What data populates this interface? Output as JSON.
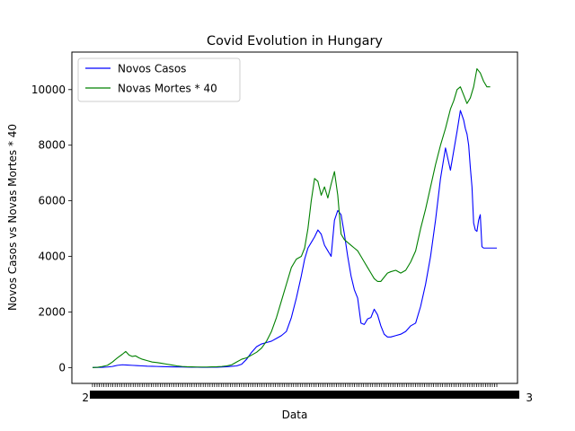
{
  "chart_data": {
    "type": "line",
    "title": "Covid Evolution in Hungary",
    "xlabel": "Data",
    "ylabel": "Novos Casos vs Novas Mortes * 40",
    "ylim": [
      -570,
      11350
    ],
    "yticks": [
      0,
      2000,
      4000,
      6000,
      8000,
      10000
    ],
    "yticklabels": [
      "0",
      "2000",
      "4000",
      "6000",
      "8000",
      "10000"
    ],
    "x_tick_labels_note": "dense overlapping date labels",
    "x_tick_overlap_label_left": "2",
    "x_tick_overlap_label_right": "3",
    "grid": false,
    "legend": {
      "placement": "top-left"
    },
    "series": [
      {
        "name": "Novos Casos",
        "color": "#0000ff",
        "x": [
          0,
          6,
          12,
          18,
          24,
          30,
          36,
          42,
          48,
          54,
          60,
          66,
          72,
          78,
          84,
          90,
          96,
          102,
          108,
          114,
          120,
          126,
          132,
          138,
          144,
          150,
          156,
          162,
          168,
          174,
          180,
          186,
          192,
          198,
          204,
          210,
          216,
          222,
          228,
          234,
          240,
          246,
          252,
          256,
          260,
          264,
          268,
          272,
          276,
          280,
          284,
          288,
          292,
          296,
          300,
          304,
          308,
          312,
          316,
          320,
          324,
          328,
          332,
          336,
          340,
          344,
          348,
          352,
          356,
          360,
          366,
          372,
          378,
          384,
          390,
          396,
          402,
          408,
          414,
          420,
          426,
          432,
          436,
          440,
          444,
          448,
          450,
          452,
          454,
          456,
          458,
          460,
          462,
          464,
          466,
          468,
          470,
          472,
          474,
          476,
          478,
          480,
          482,
          484,
          486,
          488
        ],
        "values": [
          0,
          5,
          10,
          20,
          40,
          80,
          100,
          90,
          80,
          70,
          60,
          50,
          45,
          40,
          35,
          30,
          25,
          22,
          20,
          18,
          15,
          12,
          10,
          10,
          12,
          15,
          20,
          30,
          45,
          60,
          120,
          300,
          550,
          750,
          850,
          900,
          950,
          1050,
          1150,
          1300,
          1800,
          2500,
          3300,
          3900,
          4300,
          4500,
          4700,
          4950,
          4800,
          4400,
          4200,
          4000,
          5300,
          5650,
          5500,
          4800,
          4000,
          3300,
          2800,
          2500,
          1600,
          1550,
          1750,
          1800,
          2100,
          1900,
          1500,
          1200,
          1100,
          1100,
          1150,
          1200,
          1300,
          1500,
          1600,
          2200,
          3000,
          4000,
          5300,
          6800,
          7900,
          7100,
          7800,
          8500,
          9250,
          8900,
          8600,
          8400,
          8000,
          7200,
          6500,
          5200,
          4950,
          4900,
          5300,
          5500,
          4350,
          4300,
          4300,
          4300,
          4300,
          4300,
          4300,
          4300,
          4300,
          4300
        ]
      },
      {
        "name": "Novas Mortes * 40",
        "color": "#008000",
        "x": [
          0,
          6,
          12,
          18,
          24,
          30,
          36,
          40,
          44,
          48,
          52,
          56,
          60,
          66,
          72,
          78,
          84,
          90,
          96,
          102,
          108,
          114,
          120,
          126,
          132,
          138,
          144,
          150,
          156,
          162,
          168,
          174,
          180,
          186,
          192,
          198,
          204,
          210,
          216,
          222,
          228,
          234,
          240,
          246,
          252,
          256,
          260,
          264,
          268,
          272,
          276,
          280,
          284,
          288,
          292,
          296,
          300,
          304,
          308,
          312,
          316,
          320,
          324,
          328,
          332,
          336,
          340,
          344,
          348,
          352,
          356,
          360,
          366,
          372,
          378,
          384,
          390,
          396,
          402,
          408,
          414,
          420,
          426,
          432,
          436,
          440,
          444,
          448,
          452,
          456,
          460,
          464,
          468,
          472,
          476,
          480
        ],
        "values": [
          0,
          10,
          40,
          80,
          200,
          350,
          480,
          580,
          450,
          400,
          420,
          350,
          300,
          250,
          200,
          180,
          150,
          120,
          90,
          60,
          40,
          30,
          25,
          20,
          20,
          20,
          25,
          30,
          40,
          60,
          100,
          200,
          300,
          350,
          450,
          550,
          700,
          950,
          1300,
          1800,
          2400,
          3000,
          3600,
          3900,
          4000,
          4300,
          5000,
          6000,
          6800,
          6700,
          6200,
          6500,
          6100,
          6600,
          7050,
          6200,
          4800,
          4600,
          4500,
          4400,
          4300,
          4200,
          4000,
          3800,
          3600,
          3400,
          3200,
          3100,
          3100,
          3250,
          3400,
          3450,
          3500,
          3400,
          3500,
          3800,
          4200,
          5000,
          5700,
          6500,
          7300,
          8000,
          8600,
          9300,
          9600,
          10000,
          10100,
          9800,
          9500,
          9700,
          10100,
          10750,
          10600,
          10300,
          10100,
          10100
        ]
      }
    ]
  }
}
